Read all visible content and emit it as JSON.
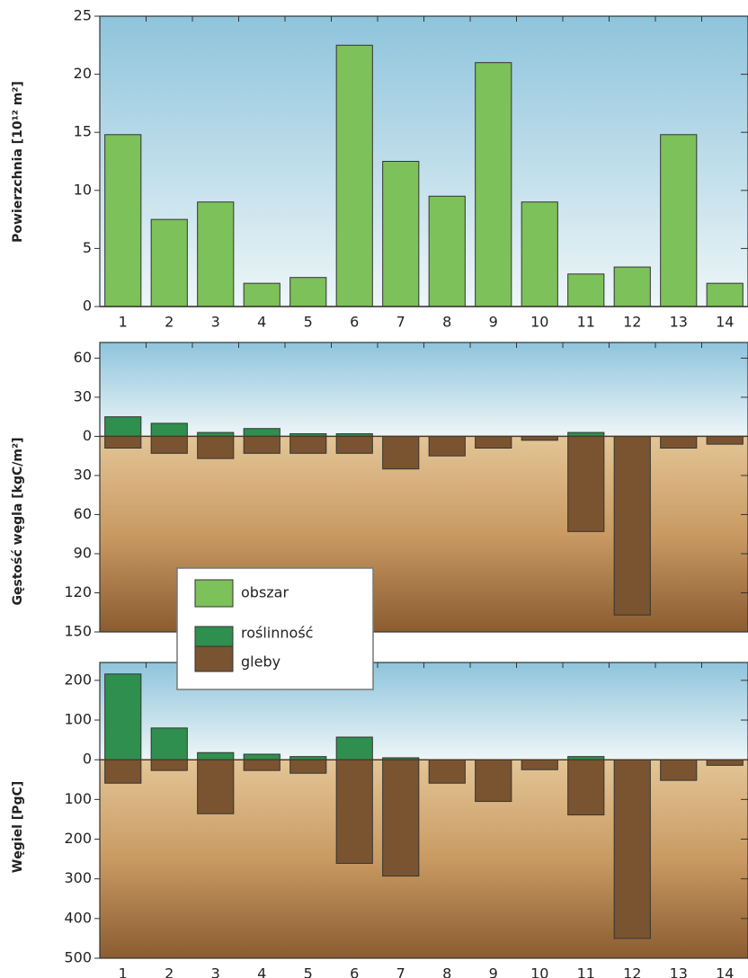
{
  "chart_data": [
    {
      "type": "bar",
      "y_label": "Powierzchnia [10¹² m²]",
      "categories": [
        "1",
        "2",
        "3",
        "4",
        "5",
        "6",
        "7",
        "8",
        "9",
        "10",
        "11",
        "12",
        "13",
        "14"
      ],
      "series": [
        {
          "name": "obszar",
          "color": "#7cc15a",
          "values": [
            14.8,
            7.5,
            9,
            2,
            2.5,
            22.5,
            12.5,
            9.5,
            21,
            9,
            2.8,
            3.4,
            14.8,
            2
          ]
        }
      ],
      "ylim": [
        0,
        25
      ],
      "yticks": [
        0,
        5,
        10,
        15,
        20,
        25
      ]
    },
    {
      "type": "bar",
      "y_label": "Gęstość węgla [kgC/m²]",
      "series": [
        {
          "name": "roślinność",
          "color": "#2f8f4e",
          "values": [
            15,
            10,
            3,
            6,
            2,
            2,
            0,
            0,
            0,
            0,
            3,
            0,
            0,
            0
          ]
        },
        {
          "name": "gleby",
          "color": "#7a5430",
          "values": [
            -9,
            -13,
            -17,
            -13,
            -13,
            -13,
            -25,
            -15,
            -9,
            -3,
            -73,
            -137,
            -9,
            -6
          ]
        }
      ],
      "ylim": [
        -150,
        72
      ],
      "yticks": [
        {
          "value": -150,
          "label": "150"
        },
        {
          "value": -120,
          "label": "120"
        },
        {
          "value": -90,
          "label": "90"
        },
        {
          "value": -60,
          "label": "60"
        },
        {
          "value": -30,
          "label": "30"
        },
        0,
        30,
        60
      ]
    },
    {
      "type": "bar",
      "y_label": "Węgiel [PgC]",
      "categories": [
        "1",
        "2",
        "3",
        "4",
        "5",
        "6",
        "7",
        "8",
        "9",
        "10",
        "11",
        "12",
        "13",
        "14"
      ],
      "series": [
        {
          "color": "#2f8f4e",
          "values": [
            216,
            80,
            18,
            14,
            8,
            57,
            5,
            0,
            0,
            0,
            8,
            0,
            0,
            0
          ]
        },
        {
          "color": "#7a5430",
          "values": [
            -59,
            -27,
            -136,
            -27,
            -34,
            -261,
            -293,
            -59,
            -105,
            -25,
            -139,
            -450,
            -52,
            -14
          ]
        }
      ],
      "ylim": [
        -500,
        245
      ],
      "yticks": [
        {
          "value": -500,
          "label": "500"
        },
        {
          "value": -400,
          "label": "400"
        },
        {
          "value": -300,
          "label": "300"
        },
        {
          "value": -200,
          "label": "200"
        },
        {
          "value": -100,
          "label": "100"
        },
        0,
        100,
        200
      ]
    }
  ]
}
